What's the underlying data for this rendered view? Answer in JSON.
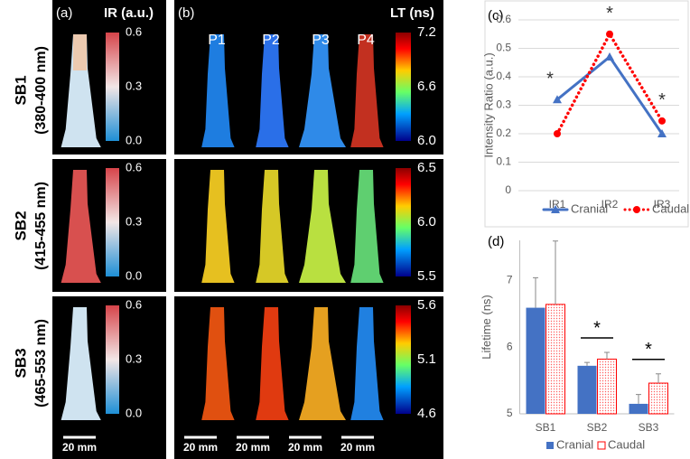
{
  "panel_a": {
    "label": "(a)",
    "title": "IR (a.u.)",
    "rows": [
      {
        "name": "SB1",
        "range": "(380-400 nm)"
      },
      {
        "name": "SB2",
        "range": "(415-455 nm)"
      },
      {
        "name": "SB3",
        "range": "(465-553 nm)"
      }
    ],
    "colorbar_ticks": [
      0.6,
      0.3,
      {
        "value": 0,
        "label": "0.0"
      }
    ],
    "scale_bar": "20 mm"
  },
  "panel_b": {
    "label": "(b)",
    "columns": [
      "P1",
      "P2",
      "P3",
      "P4"
    ],
    "title": "LT (ns)",
    "colorbars": [
      [
        7.2,
        6.6,
        {
          "value": 6,
          "label": "6.0"
        }
      ],
      [
        6.5,
        {
          "value": 6,
          "label": "6.0"
        },
        5.5
      ],
      [
        5.6,
        5.1,
        4.6
      ]
    ],
    "scale_bar": "20 mm"
  },
  "chart_data": [
    {
      "type": "line",
      "label": "(c)",
      "y_label": "Intensity Ratio (a.u.)",
      "categories": [
        "IR1",
        "IR2",
        "IR3"
      ],
      "series": [
        {
          "name": "Cranial",
          "color": "#4472c4",
          "values": [
            0.32,
            0.47,
            0.2
          ]
        },
        {
          "name": "Caudal",
          "color": "#ff0000",
          "values": [
            0.2,
            0.55,
            0.245
          ]
        }
      ],
      "ylim": [
        0,
        0.6
      ],
      "yticks": [
        0,
        0.1,
        0.2,
        0.3,
        0.4,
        0.5,
        0.6
      ],
      "grid": true,
      "legend": "bottom",
      "annotations": [
        "*",
        "*",
        "*"
      ]
    },
    {
      "type": "bar",
      "label": "(d)",
      "y_label": "Lifetime (ns)",
      "categories": [
        "SB1",
        "SB2",
        "SB3"
      ],
      "series": [
        {
          "name": "Cranial",
          "color": "#4472c4",
          "values": [
            6.59,
            5.72,
            5.15
          ],
          "errors": [
            0.45,
            0.05,
            0.14
          ]
        },
        {
          "name": "Caudal",
          "color": "#ff0000",
          "values": [
            6.64,
            5.82,
            5.46
          ],
          "errors": [
            0.95,
            0.1,
            0.14
          ]
        }
      ],
      "ylim": [
        5,
        7.6
      ],
      "yticks": [
        5,
        6,
        7
      ],
      "grid": false,
      "legend": "bottom",
      "annotations": [
        "*",
        "*"
      ]
    }
  ]
}
